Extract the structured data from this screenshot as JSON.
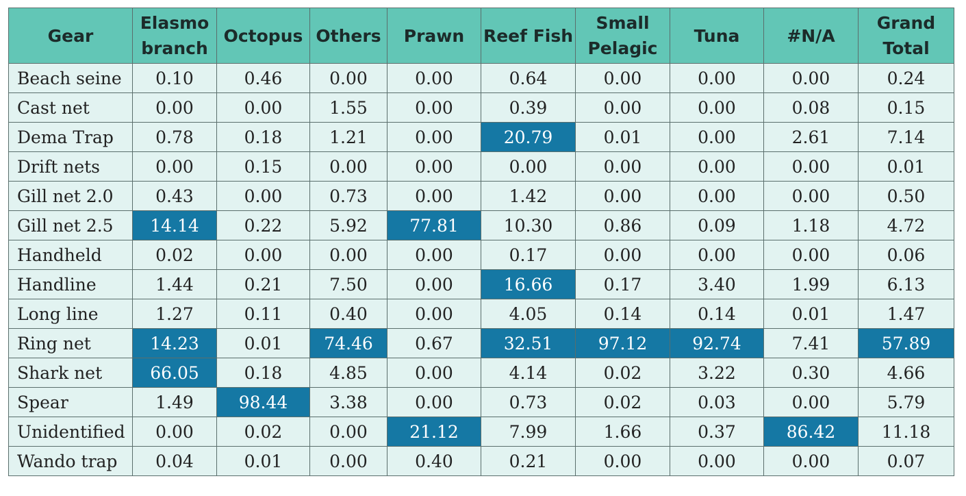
{
  "table": {
    "columns": [
      "Gear",
      "Elasmo branch",
      "Octopus",
      "Others",
      "Prawn",
      "Reef Fish",
      "Small Pelagic",
      "Tuna",
      "#N/A",
      "Grand Total"
    ],
    "highlight_color": "#1578a4",
    "header_color": "#62c6b6",
    "body_color": "#e2f3f1",
    "rows": [
      {
        "gear": "Beach seine",
        "values": [
          "0.10",
          "0.46",
          "0.00",
          "0.00",
          "0.64",
          "0.00",
          "0.00",
          "0.00",
          "0.24"
        ],
        "highlight": []
      },
      {
        "gear": "Cast net",
        "values": [
          "0.00",
          "0.00",
          "1.55",
          "0.00",
          "0.39",
          "0.00",
          "0.00",
          "0.08",
          "0.15"
        ],
        "highlight": []
      },
      {
        "gear": "Dema Trap",
        "values": [
          "0.78",
          "0.18",
          "1.21",
          "0.00",
          "20.79",
          "0.01",
          "0.00",
          "2.61",
          "7.14"
        ],
        "highlight": [
          4
        ]
      },
      {
        "gear": "Drift nets",
        "values": [
          "0.00",
          "0.15",
          "0.00",
          "0.00",
          "0.00",
          "0.00",
          "0.00",
          "0.00",
          "0.01"
        ],
        "highlight": []
      },
      {
        "gear": "Gill net 2.0",
        "values": [
          "0.43",
          "0.00",
          "0.73",
          "0.00",
          "1.42",
          "0.00",
          "0.00",
          "0.00",
          "0.50"
        ],
        "highlight": []
      },
      {
        "gear": "Gill net 2.5",
        "values": [
          "14.14",
          "0.22",
          "5.92",
          "77.81",
          "10.30",
          "0.86",
          "0.09",
          "1.18",
          "4.72"
        ],
        "highlight": [
          0,
          3
        ]
      },
      {
        "gear": "Handheld",
        "values": [
          "0.02",
          "0.00",
          "0.00",
          "0.00",
          "0.17",
          "0.00",
          "0.00",
          "0.00",
          "0.06"
        ],
        "highlight": []
      },
      {
        "gear": "Handline",
        "values": [
          "1.44",
          "0.21",
          "7.50",
          "0.00",
          "16.66",
          "0.17",
          "3.40",
          "1.99",
          "6.13"
        ],
        "highlight": [
          4
        ]
      },
      {
        "gear": "Long line",
        "values": [
          "1.27",
          "0.11",
          "0.40",
          "0.00",
          "4.05",
          "0.14",
          "0.14",
          "0.01",
          "1.47"
        ],
        "highlight": []
      },
      {
        "gear": "Ring net",
        "values": [
          "14.23",
          "0.01",
          "74.46",
          "0.67",
          "32.51",
          "97.12",
          "92.74",
          "7.41",
          "57.89"
        ],
        "highlight": [
          0,
          2,
          4,
          5,
          6,
          8
        ]
      },
      {
        "gear": "Shark net",
        "values": [
          "66.05",
          "0.18",
          "4.85",
          "0.00",
          "4.14",
          "0.02",
          "3.22",
          "0.30",
          "4.66"
        ],
        "highlight": [
          0
        ]
      },
      {
        "gear": "Spear",
        "values": [
          "1.49",
          "98.44",
          "3.38",
          "0.00",
          "0.73",
          "0.02",
          "0.03",
          "0.00",
          "5.79"
        ],
        "highlight": [
          1
        ]
      },
      {
        "gear": "Unidentified",
        "values": [
          "0.00",
          "0.02",
          "0.00",
          "21.12",
          "7.99",
          "1.66",
          "0.37",
          "86.42",
          "11.18"
        ],
        "highlight": [
          3,
          7
        ]
      },
      {
        "gear": "Wando trap",
        "values": [
          "0.04",
          "0.01",
          "0.00",
          "0.40",
          "0.21",
          "0.00",
          "0.00",
          "0.00",
          "0.07"
        ],
        "highlight": []
      }
    ]
  }
}
